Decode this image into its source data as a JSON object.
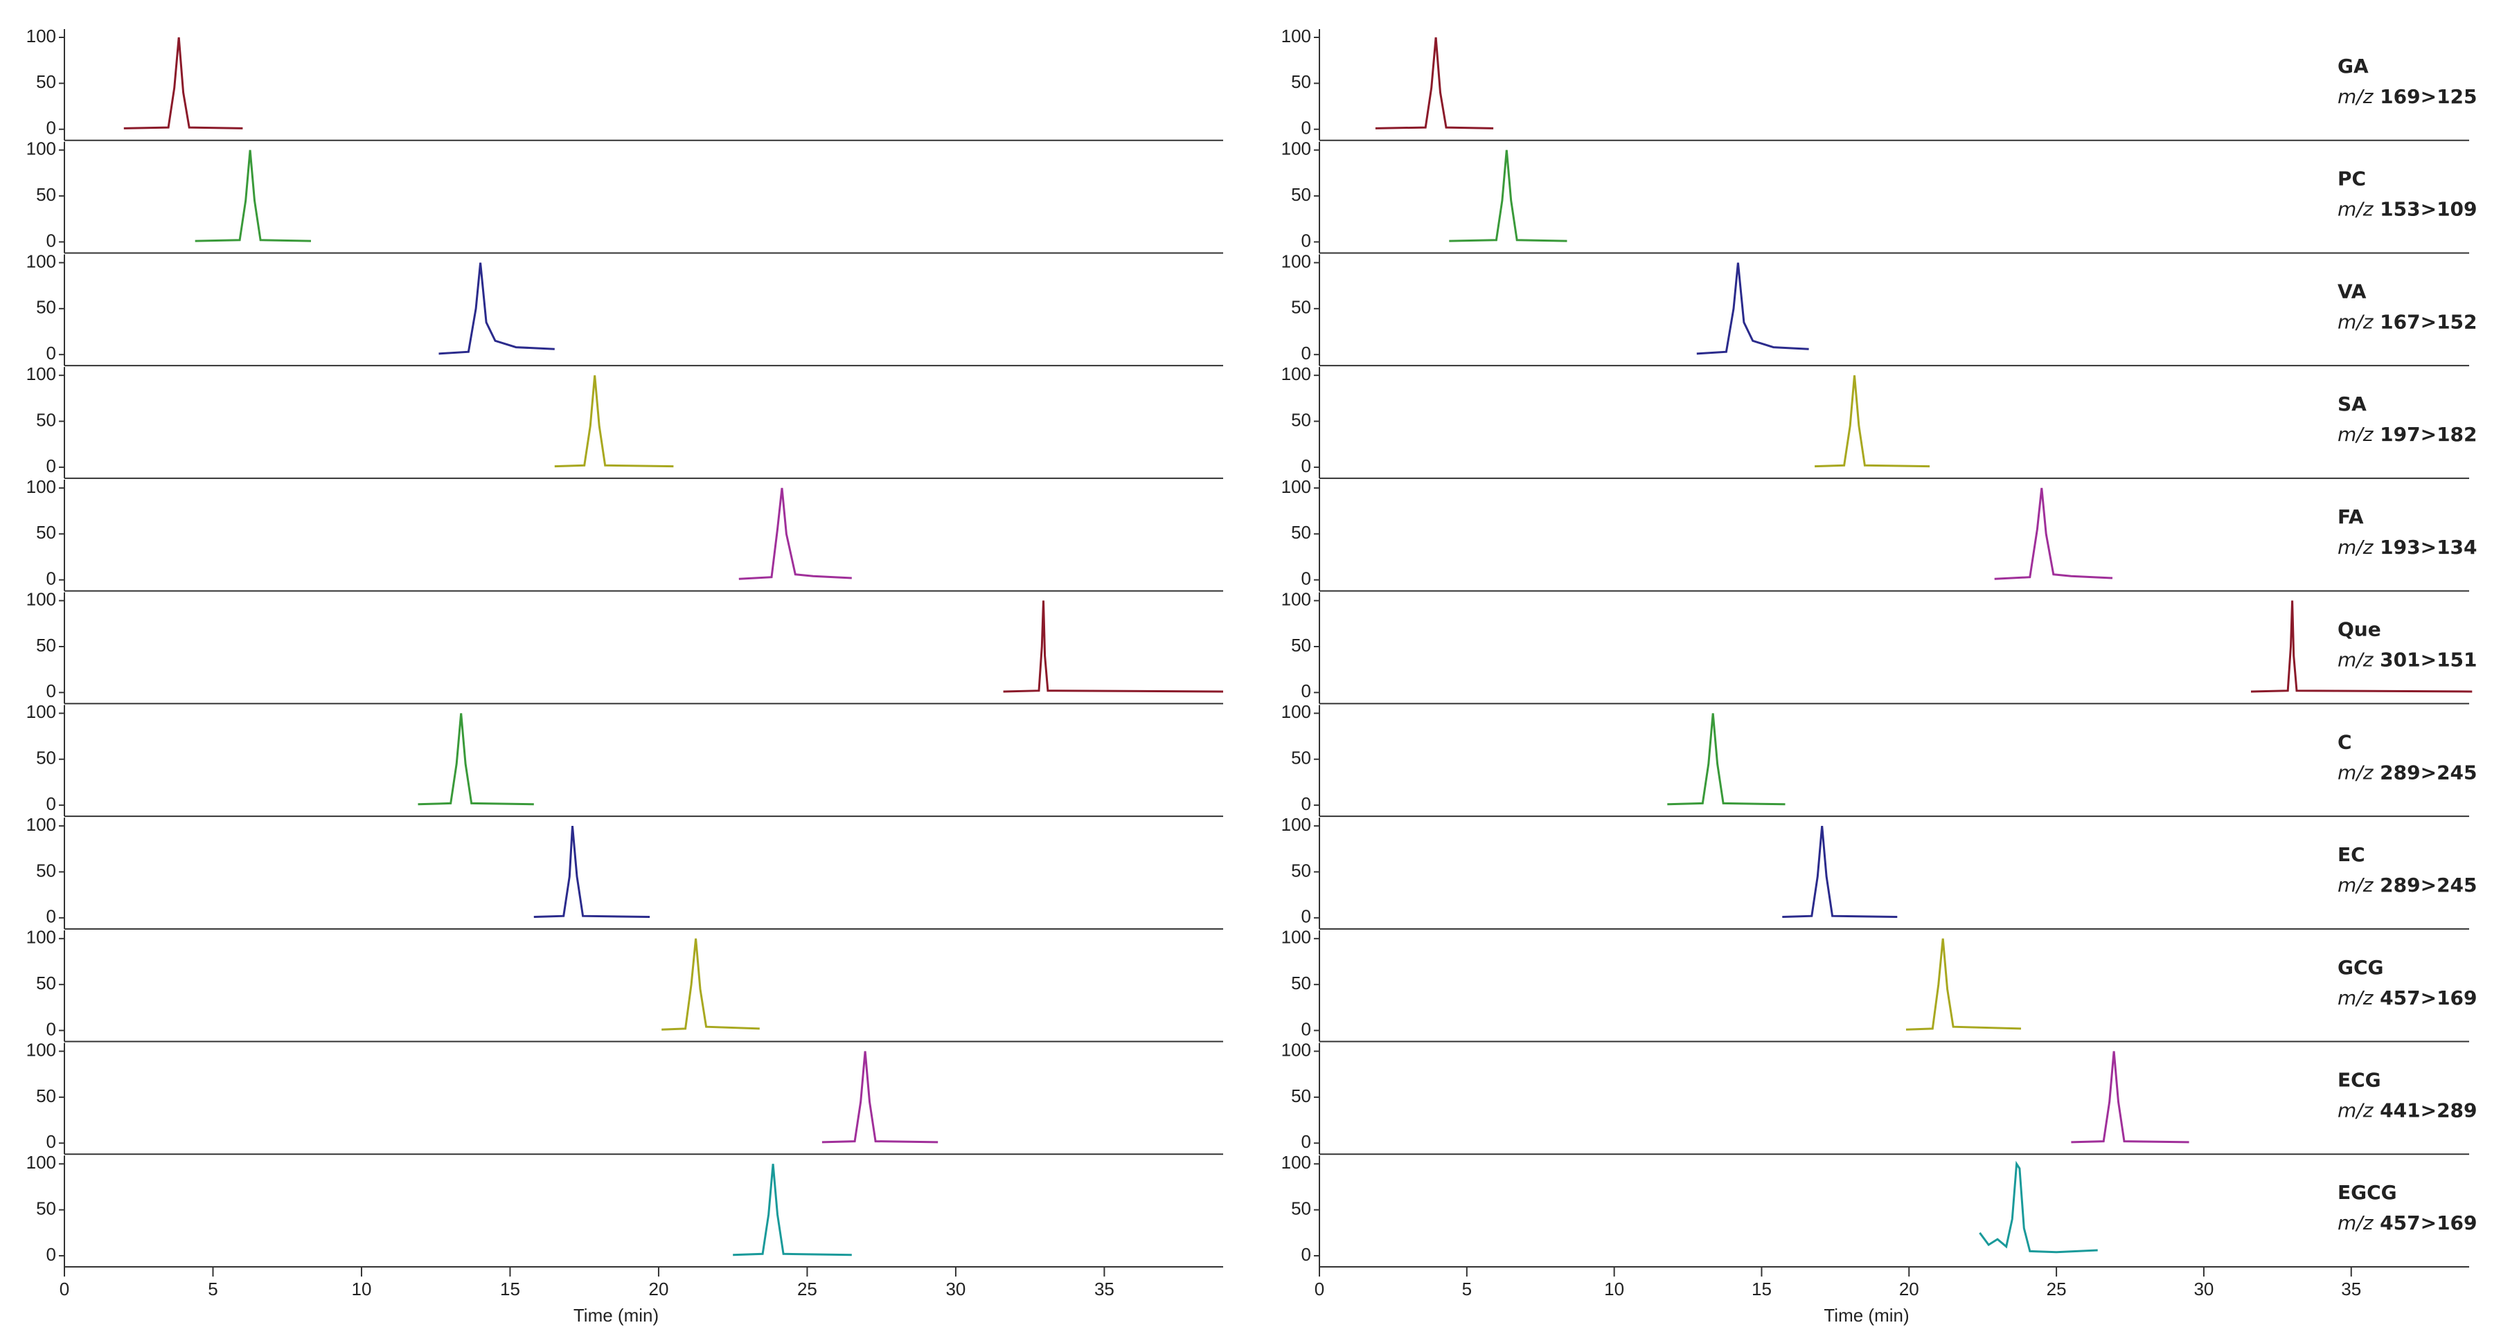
{
  "chart_data": [
    {
      "type": "line",
      "xlabel": "Time (min)",
      "xlim": [
        0,
        39
      ],
      "xticks": [
        0,
        5,
        10,
        15,
        20,
        25,
        30,
        35
      ],
      "ylim": [
        0,
        100
      ],
      "yticks": [
        0,
        50,
        100
      ],
      "series": [
        {
          "color": "#8b1a2a",
          "x": [
            2,
            3.5,
            3.7,
            3.85,
            4.0,
            4.2,
            6
          ],
          "values": [
            1,
            2,
            45,
            100,
            40,
            2,
            1
          ]
        },
        {
          "color": "#3a9a3a",
          "x": [
            4.4,
            5.9,
            6.1,
            6.25,
            6.4,
            6.6,
            8.3
          ],
          "values": [
            1,
            2,
            45,
            100,
            45,
            2,
            1
          ]
        },
        {
          "color": "#2b2b8c",
          "x": [
            12.6,
            13.6,
            13.85,
            14.0,
            14.2,
            14.5,
            15.2,
            16.5
          ],
          "values": [
            1,
            3,
            50,
            100,
            35,
            15,
            8,
            6
          ]
        },
        {
          "color": "#a8a820",
          "x": [
            16.5,
            17.5,
            17.7,
            17.85,
            18.0,
            18.2,
            20.5
          ],
          "values": [
            1,
            2,
            45,
            100,
            45,
            2,
            1
          ]
        },
        {
          "color": "#a0309a",
          "x": [
            22.7,
            23.8,
            24.0,
            24.15,
            24.3,
            24.6,
            25.2,
            26.5
          ],
          "values": [
            1,
            3,
            55,
            100,
            50,
            6,
            4,
            2
          ]
        },
        {
          "color": "#8b1a2a",
          "x": [
            31.6,
            32.8,
            32.9,
            32.95,
            33.0,
            33.1,
            39
          ],
          "values": [
            1,
            2,
            50,
            100,
            40,
            2,
            1
          ]
        },
        {
          "color": "#3a9a3a",
          "x": [
            11.9,
            13.0,
            13.2,
            13.35,
            13.5,
            13.7,
            15.8
          ],
          "values": [
            1,
            2,
            45,
            100,
            45,
            2,
            1
          ]
        },
        {
          "color": "#2b2b8c",
          "x": [
            15.8,
            16.8,
            17.0,
            17.1,
            17.25,
            17.45,
            19.7
          ],
          "values": [
            1,
            2,
            45,
            100,
            45,
            2,
            1
          ]
        },
        {
          "color": "#a8a820",
          "x": [
            20.1,
            20.9,
            21.1,
            21.25,
            21.4,
            21.6,
            23.4
          ],
          "values": [
            1,
            2,
            50,
            100,
            45,
            4,
            2
          ]
        },
        {
          "color": "#a0309a",
          "x": [
            25.5,
            26.6,
            26.8,
            26.95,
            27.1,
            27.3,
            29.4
          ],
          "values": [
            1,
            2,
            45,
            100,
            45,
            2,
            1
          ]
        },
        {
          "color": "#1a9a9a",
          "x": [
            22.5,
            23.5,
            23.7,
            23.85,
            24.0,
            24.2,
            26.5
          ],
          "values": [
            1,
            2,
            45,
            100,
            45,
            2,
            1
          ]
        }
      ]
    },
    {
      "type": "line",
      "xlabel": "Time (min)",
      "xlim": [
        0,
        39
      ],
      "xticks": [
        0,
        5,
        10,
        15,
        20,
        25,
        30,
        35
      ],
      "ylim": [
        0,
        100
      ],
      "yticks": [
        0,
        50,
        100
      ],
      "series": [
        {
          "name": "GA",
          "ion_label": "m/z",
          "transition": "169>125",
          "color": "#8b1a2a",
          "x": [
            1.9,
            3.6,
            3.8,
            3.95,
            4.1,
            4.3,
            5.9
          ],
          "values": [
            1,
            2,
            45,
            100,
            40,
            2,
            1
          ]
        },
        {
          "name": "PC",
          "ion_label": "m/z",
          "transition": "153>109",
          "color": "#3a9a3a",
          "x": [
            4.4,
            6.0,
            6.2,
            6.35,
            6.5,
            6.7,
            8.4
          ],
          "values": [
            1,
            2,
            45,
            100,
            45,
            2,
            1
          ]
        },
        {
          "name": "VA",
          "ion_label": "m/z",
          "transition": "167>152",
          "color": "#2b2b8c",
          "x": [
            12.8,
            13.8,
            14.05,
            14.2,
            14.4,
            14.7,
            15.4,
            16.6
          ],
          "values": [
            1,
            3,
            50,
            100,
            35,
            15,
            8,
            6
          ]
        },
        {
          "name": "SA",
          "ion_label": "m/z",
          "transition": "197>182",
          "color": "#a8a820",
          "x": [
            16.8,
            17.8,
            18.0,
            18.15,
            18.3,
            18.5,
            20.7
          ],
          "values": [
            1,
            2,
            45,
            100,
            45,
            2,
            1
          ]
        },
        {
          "name": "FA",
          "ion_label": "m/z",
          "transition": "193>134",
          "color": "#a0309a",
          "x": [
            22.9,
            24.1,
            24.35,
            24.5,
            24.65,
            24.9,
            25.5,
            26.9
          ],
          "values": [
            1,
            3,
            55,
            100,
            50,
            6,
            4,
            2
          ]
        },
        {
          "name": "Que",
          "ion_label": "m/z",
          "transition": "301>151",
          "color": "#8b1a2a",
          "x": [
            31.6,
            32.85,
            32.95,
            33.0,
            33.05,
            33.15,
            39.1
          ],
          "values": [
            1,
            2,
            50,
            100,
            40,
            2,
            1
          ]
        },
        {
          "name": "C",
          "ion_label": "m/z",
          "transition": "289>245",
          "color": "#3a9a3a",
          "x": [
            11.8,
            13.0,
            13.2,
            13.35,
            13.5,
            13.7,
            15.8
          ],
          "values": [
            1,
            2,
            45,
            100,
            45,
            2,
            1
          ]
        },
        {
          "name": "EC",
          "ion_label": "m/z",
          "transition": "289>245",
          "color": "#2b2b8c",
          "x": [
            15.7,
            16.7,
            16.9,
            17.05,
            17.2,
            17.4,
            19.6
          ],
          "values": [
            1,
            2,
            45,
            100,
            45,
            2,
            1
          ]
        },
        {
          "name": "GCG",
          "ion_label": "m/z",
          "transition": "457>169",
          "color": "#a8a820",
          "x": [
            19.9,
            20.8,
            21.0,
            21.15,
            21.3,
            21.5,
            23.8
          ],
          "values": [
            1,
            2,
            50,
            100,
            45,
            4,
            2
          ]
        },
        {
          "name": "ECG",
          "ion_label": "m/z",
          "transition": "441>289",
          "color": "#a0309a",
          "x": [
            25.5,
            26.6,
            26.8,
            26.95,
            27.1,
            27.3,
            29.5
          ],
          "values": [
            1,
            2,
            45,
            100,
            45,
            2,
            1
          ]
        },
        {
          "name": "EGCG",
          "ion_label": "m/z",
          "transition": "457>169",
          "color": "#1a9a9a",
          "x": [
            22.4,
            22.7,
            23.0,
            23.3,
            23.5,
            23.65,
            23.75,
            23.9,
            24.1,
            25,
            26.4
          ],
          "values": [
            25,
            12,
            18,
            10,
            40,
            100,
            95,
            30,
            5,
            4,
            6
          ]
        }
      ]
    }
  ]
}
